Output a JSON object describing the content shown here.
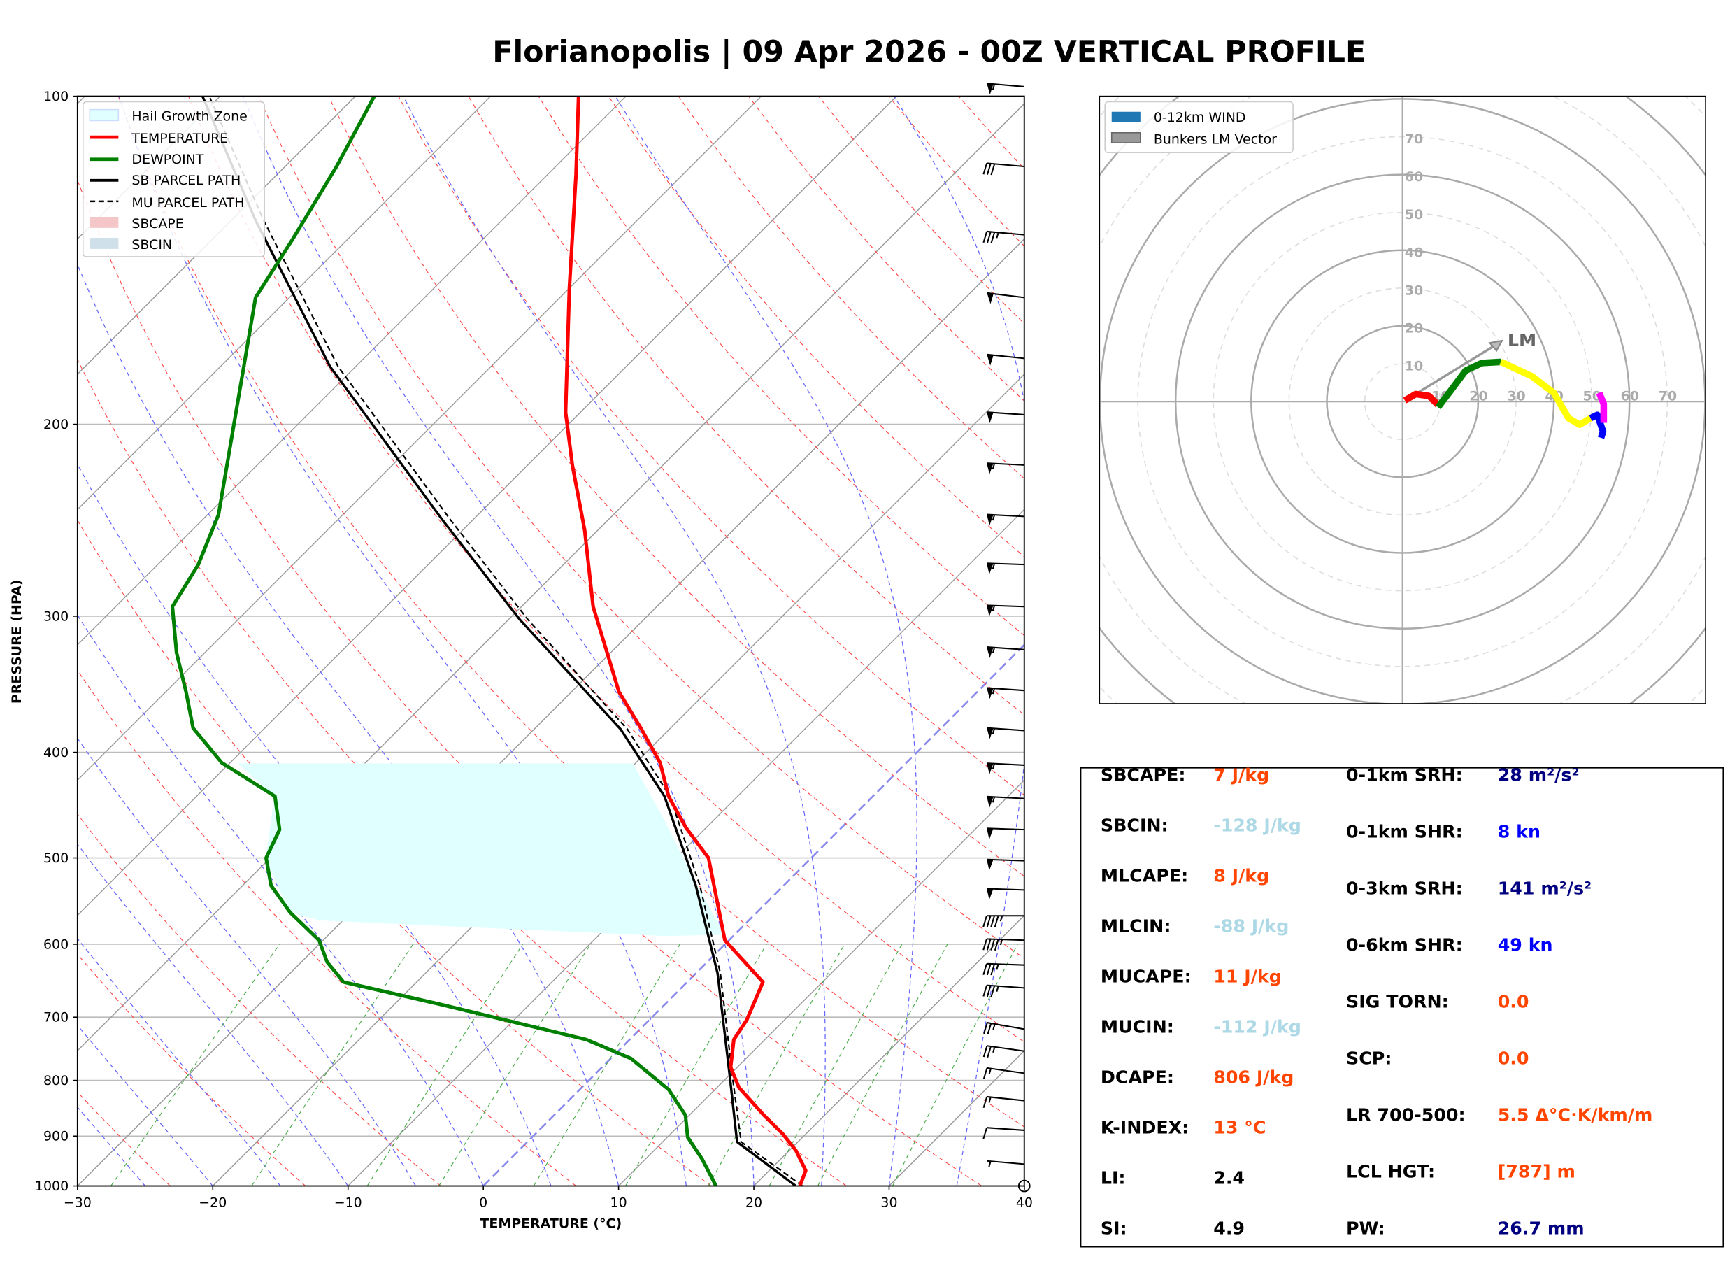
{
  "title": "Florianopolis | 09 Apr 2026 - 00Z VERTICAL PROFILE",
  "colors": {
    "temperature": "#ff0000",
    "dewpoint": "#008000",
    "parcel": "#000000",
    "hgz": "#e0ffff",
    "value_orange": "#ff4500",
    "value_lightblue": "#add8e6",
    "value_navy": "#000080",
    "value_blue": "#0000ff",
    "value_black": "#000000"
  },
  "chart_data": [
    {
      "type": "line",
      "name": "skew-t",
      "xlabel": "TEMPERATURE (°C)",
      "ylabel": "PRESSURE (HPA)",
      "xlim": [
        -30,
        40
      ],
      "ylim": [
        1000,
        100
      ],
      "yscale": "log",
      "x_ticks": [
        "−30",
        "−20",
        "−10",
        "0",
        "10",
        "20",
        "30",
        "40"
      ],
      "y_ticks": [
        "100",
        "200",
        "300",
        "400",
        "500",
        "600",
        "700",
        "800",
        "900",
        "1000"
      ],
      "legend": {
        "placement": "top-left",
        "entries": [
          "Hail Growth Zone",
          "TEMPERATURE",
          "DEWPOINT",
          "SB PARCEL PATH",
          "MU PARCEL PATH",
          "SBCAPE",
          "SBCIN"
        ]
      },
      "series": [
        {
          "name": "TEMPERATURE",
          "pressure": [
            1000,
            968,
            928,
            896,
            861,
            812,
            778,
            734,
            704,
            650,
            595,
            500,
            469,
            439,
            409,
            380,
            352,
            294,
            250,
            218,
            195,
            150,
            118,
            100
          ],
          "temperature": [
            23.4,
            22.7,
            20.5,
            18.3,
            15.5,
            11.6,
            9.5,
            7.7,
            7.2,
            5.6,
            -0.3,
            -7.6,
            -11.5,
            -15.1,
            -18.2,
            -22.2,
            -26.5,
            -34.7,
            -41.0,
            -46.7,
            -51.1,
            -60.0,
            -67.9,
            -73.5
          ]
        },
        {
          "name": "DEWPOINT",
          "pressure": [
            1000,
            945,
            902,
            861,
            816,
            764,
            734,
            682,
            650,
            623,
            595,
            561,
            530,
            500,
            471,
            439,
            409,
            380,
            352,
            324,
            294,
            269,
            242,
            153,
            135,
            116,
            100
          ],
          "temperature": [
            17.2,
            14.2,
            11.5,
            9.7,
            6.6,
            1.5,
            -3.2,
            -16.4,
            -25.4,
            -28.1,
            -30.3,
            -34.5,
            -37.9,
            -40.3,
            -41.4,
            -44.2,
            -50.6,
            -55.3,
            -58.5,
            -62.1,
            -65.8,
            -67.0,
            -69.2,
            -82.5,
            -84.1,
            -86.2,
            -88.6
          ]
        },
        {
          "name": "SB PARCEL PATH",
          "pressure": [
            1000,
            911,
            799,
            638,
            530,
            439,
            381,
            302,
            245,
            177,
            130,
            100
          ],
          "temperature": [
            23.1,
            15.5,
            10.4,
            1.6,
            -6.5,
            -15.4,
            -23.6,
            -39.2,
            -52.2,
            -71.9,
            -88.2,
            -101.3
          ]
        },
        {
          "name": "MU PARCEL PATH",
          "pressure": [
            1000,
            911,
            799,
            638,
            530,
            439,
            381,
            302,
            245,
            177,
            130,
            100
          ],
          "temperature": [
            23.6,
            15.8,
            10.6,
            1.8,
            -6.2,
            -15.0,
            -23.1,
            -38.6,
            -51.6,
            -71.3,
            -87.6,
            -100.8
          ]
        }
      ],
      "hail_growth_zone_hpa": [
        590,
        415
      ],
      "wind_barbs": [
        {
          "p": 98,
          "kn": 55,
          "dir": 265
        },
        {
          "p": 116,
          "kn": 30,
          "dir": 265
        },
        {
          "p": 134,
          "kn": 35,
          "dir": 265
        },
        {
          "p": 153,
          "kn": 50,
          "dir": 263
        },
        {
          "p": 174,
          "kn": 50,
          "dir": 264
        },
        {
          "p": 196,
          "kn": 50,
          "dir": 266
        },
        {
          "p": 218,
          "kn": 55,
          "dir": 267
        },
        {
          "p": 243,
          "kn": 55,
          "dir": 267
        },
        {
          "p": 269,
          "kn": 55,
          "dir": 268
        },
        {
          "p": 294,
          "kn": 55,
          "dir": 268
        },
        {
          "p": 322,
          "kn": 55,
          "dir": 266
        },
        {
          "p": 351,
          "kn": 55,
          "dir": 266
        },
        {
          "p": 382,
          "kn": 55,
          "dir": 266
        },
        {
          "p": 411,
          "kn": 55,
          "dir": 267
        },
        {
          "p": 441,
          "kn": 55,
          "dir": 267
        },
        {
          "p": 471,
          "kn": 50,
          "dir": 268
        },
        {
          "p": 503,
          "kn": 50,
          "dir": 268
        },
        {
          "p": 535,
          "kn": 50,
          "dir": 268
        },
        {
          "p": 565,
          "kn": 45,
          "dir": 270
        },
        {
          "p": 595,
          "kn": 45,
          "dir": 268
        },
        {
          "p": 627,
          "kn": 35,
          "dir": 268
        },
        {
          "p": 658,
          "kn": 35,
          "dir": 266
        },
        {
          "p": 718,
          "kn": 25,
          "dir": 260
        },
        {
          "p": 752,
          "kn": 25,
          "dir": 262
        },
        {
          "p": 788,
          "kn": 15,
          "dir": 262
        },
        {
          "p": 835,
          "kn": 15,
          "dir": 264
        },
        {
          "p": 889,
          "kn": 10,
          "dir": 266
        },
        {
          "p": 955,
          "kn": 5,
          "dir": 265
        }
      ]
    },
    {
      "type": "line",
      "name": "hodograph",
      "units": "kn",
      "ring_labels": [
        "10",
        "20",
        "30",
        "40",
        "50",
        "60",
        "70"
      ],
      "legend": {
        "placement": "top-left",
        "entries": [
          "0-12km WIND",
          "Bunkers LM Vector"
        ]
      },
      "lm_label": "LM",
      "lm_vector": [
        26.3,
        16.1
      ],
      "segments": [
        {
          "color": "#ff0000",
          "u": [
            0.6,
            3.5,
            7.0,
            9.4
          ],
          "v": [
            0.3,
            2.0,
            1.5,
            -0.9
          ]
        },
        {
          "color": "#008000",
          "u": [
            9.4,
            12.3,
            16.7,
            21.0,
            26.0
          ],
          "v": [
            -1.5,
            2.3,
            8.2,
            10.2,
            10.5
          ]
        },
        {
          "color": "#ffff00",
          "u": [
            26.0,
            34.2,
            40.0,
            43.9,
            46.8,
            49.7
          ],
          "v": [
            10.5,
            6.7,
            2.3,
            -4.4,
            -6.1,
            -4.4
          ]
        },
        {
          "color": "#0000ff",
          "u": [
            49.7,
            51.5,
            53.0,
            52.5
          ],
          "v": [
            -4.4,
            -3.5,
            -7.9,
            -9.6
          ]
        },
        {
          "color": "#ff00ff",
          "u": [
            52.0,
            53.2,
            53.2
          ],
          "v": [
            2.3,
            -0.6,
            -5.6
          ]
        }
      ]
    }
  ],
  "stats": {
    "left": [
      {
        "label": "SBCAPE:",
        "value": "7 J/kg",
        "color": "#ff4500"
      },
      {
        "label": "SBCIN:",
        "value": "-128 J/kg",
        "color": "#add8e6"
      },
      {
        "label": "MLCAPE:",
        "value": "8 J/kg",
        "color": "#ff4500"
      },
      {
        "label": "MLCIN:",
        "value": "-88 J/kg",
        "color": "#add8e6"
      },
      {
        "label": "MUCAPE:",
        "value": "11 J/kg",
        "color": "#ff4500"
      },
      {
        "label": "MUCIN:",
        "value": "-112 J/kg",
        "color": "#add8e6"
      },
      {
        "label": "DCAPE:",
        "value": "806 J/kg",
        "color": "#ff4500"
      },
      {
        "label": "K-INDEX:",
        "value": "13 °C",
        "color": "#ff4500"
      },
      {
        "label": "LI:",
        "value": "2.4",
        "color": "#000000"
      },
      {
        "label": "SI:",
        "value": "4.9",
        "color": "#000000"
      }
    ],
    "right": [
      {
        "label": "0-1km SRH:",
        "value": "28 m²/s²",
        "color": "#000080"
      },
      {
        "label": "0-1km SHR:",
        "value": "8 kn",
        "color": "#0000ff"
      },
      {
        "label": "0-3km SRH:",
        "value": "141 m²/s²",
        "color": "#000080"
      },
      {
        "label": "0-6km SHR:",
        "value": "49 kn",
        "color": "#0000ff"
      },
      {
        "label": "SIG TORN:",
        "value": "0.0",
        "color": "#ff4500"
      },
      {
        "label": "SCP:",
        "value": "0.0",
        "color": "#ff4500"
      },
      {
        "label": "LR 700-500:",
        "value": "5.5 Δ°C·K/km/m",
        "color": "#ff4500"
      },
      {
        "label": "LCL HGT:",
        "value": "[787] m",
        "color": "#ff4500"
      },
      {
        "label": "PW:",
        "value": "26.7 mm",
        "color": "#000080"
      }
    ]
  }
}
